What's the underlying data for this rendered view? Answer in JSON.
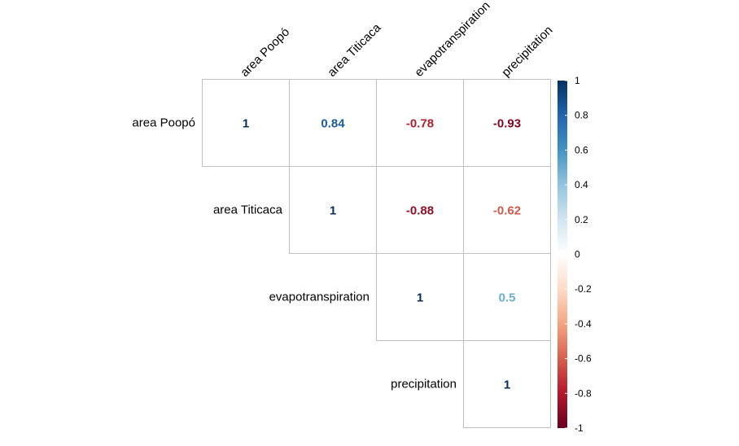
{
  "chart_data": {
    "type": "heatmap",
    "layout": "upper-triangle",
    "variables": [
      "area Poopó",
      "area Titicaca",
      "evapotranspiration",
      "precipitation"
    ],
    "cells": [
      {
        "row": 0,
        "col": 0,
        "value": 1,
        "label": "1"
      },
      {
        "row": 0,
        "col": 1,
        "value": 0.84,
        "label": "0.84"
      },
      {
        "row": 0,
        "col": 2,
        "value": -0.78,
        "label": "-0.78"
      },
      {
        "row": 0,
        "col": 3,
        "value": -0.93,
        "label": "-0.93"
      },
      {
        "row": 1,
        "col": 1,
        "value": 1,
        "label": "1"
      },
      {
        "row": 1,
        "col": 2,
        "value": -0.88,
        "label": "-0.88"
      },
      {
        "row": 1,
        "col": 3,
        "value": -0.62,
        "label": "-0.62"
      },
      {
        "row": 2,
        "col": 2,
        "value": 1,
        "label": "1"
      },
      {
        "row": 2,
        "col": 3,
        "value": 0.5,
        "label": "0.5"
      },
      {
        "row": 3,
        "col": 3,
        "value": 1,
        "label": "1"
      }
    ],
    "colorbar": {
      "range": [
        -1,
        1
      ],
      "ticks": [
        "1",
        "0.8",
        "0.6",
        "0.4",
        "0.2",
        "0",
        "-0.2",
        "-0.4",
        "-0.6",
        "-0.8",
        "-1"
      ],
      "colors": [
        "#67001F",
        "#B2182B",
        "#D6604D",
        "#F4A582",
        "#FDDBC7",
        "#FFFFFF",
        "#D1E5F0",
        "#92C5DE",
        "#4393C3",
        "#2166AC",
        "#053061"
      ]
    },
    "grid": true,
    "legend": "right"
  }
}
